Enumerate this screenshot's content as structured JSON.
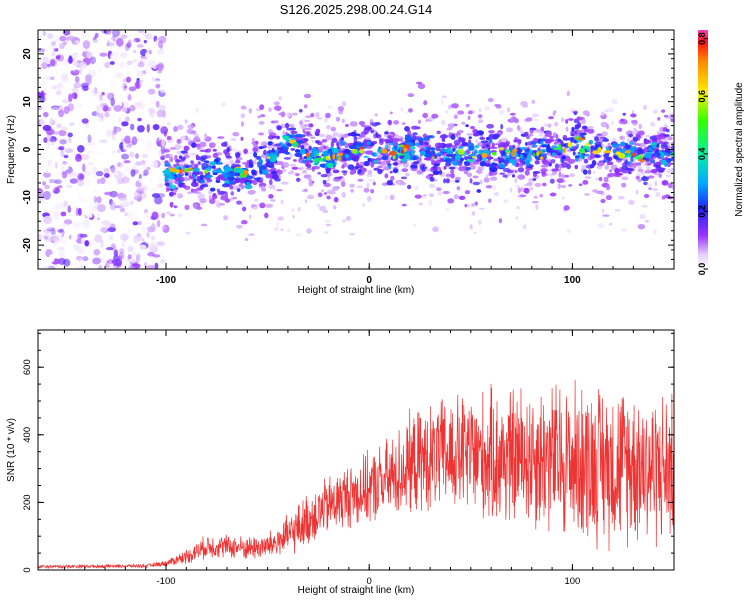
{
  "title": "S126.2025.298.00.24.G14",
  "chart_data": [
    {
      "type": "heatmap",
      "name": "spectrogram",
      "xlabel": "Height of straight line (km)",
      "ylabel": "Frequency (Hz)",
      "xlim": [
        -163,
        150
      ],
      "ylim": [
        -25,
        25
      ],
      "x_ticks": [
        -100,
        0,
        100
      ],
      "y_ticks": [
        -20,
        -10,
        0,
        10,
        20
      ],
      "colorbar": {
        "label": "Normalized spectral amplitude",
        "range": [
          0,
          0.83
        ],
        "ticks": [
          0.0,
          0.2,
          0.4,
          0.6,
          0.8
        ]
      },
      "ridge": {
        "description_points_x": [
          -100,
          -80,
          -60,
          -50,
          -40,
          -30,
          -20,
          -10,
          0,
          10,
          20,
          40,
          60,
          80,
          100,
          120,
          150
        ],
        "frequency_hz": [
          -5,
          -4,
          -5,
          -3,
          2,
          -1,
          -2,
          -1,
          1,
          -1,
          0,
          -1,
          -1,
          -1,
          1,
          -1,
          -1
        ]
      },
      "noise_region_x": [
        -163,
        -100
      ]
    },
    {
      "type": "line",
      "name": "snr",
      "xlabel": "Height of straight line (km)",
      "ylabel": "SNR (10 * v/v)",
      "xlim": [
        -163,
        150
      ],
      "ylim": [
        0,
        710
      ],
      "x_ticks": [
        -100,
        0,
        100
      ],
      "y_ticks": [
        0,
        200,
        400,
        600
      ],
      "color": "#ee3333",
      "envelope": {
        "x": [
          -163,
          -110,
          -100,
          -90,
          -80,
          -70,
          -60,
          -50,
          -40,
          -30,
          -20,
          -10,
          0,
          10,
          20,
          30,
          40,
          50,
          60,
          70,
          80,
          90,
          100,
          110,
          120,
          130,
          140,
          150
        ],
        "mean": [
          10,
          12,
          20,
          40,
          70,
          70,
          65,
          70,
          100,
          150,
          190,
          220,
          240,
          270,
          310,
          330,
          340,
          340,
          330,
          330,
          340,
          330,
          320,
          320,
          310,
          320,
          300,
          300
        ],
        "spread": [
          6,
          6,
          10,
          25,
          40,
          40,
          40,
          45,
          70,
          90,
          100,
          110,
          120,
          140,
          170,
          180,
          200,
          210,
          230,
          240,
          250,
          260,
          270,
          270,
          270,
          270,
          260,
          260
        ]
      }
    }
  ]
}
